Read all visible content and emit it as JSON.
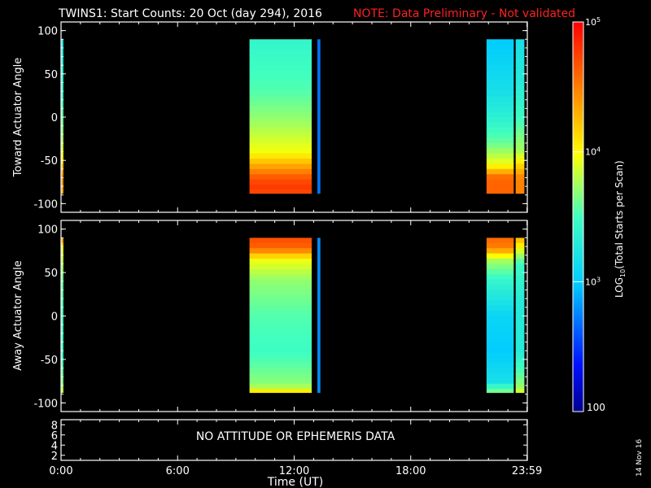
{
  "header": {
    "title": "TWINS1: Start Counts: 20 Oct (day 294), 2016",
    "note": "NOTE: Data Preliminary - Not validated",
    "note_color": "#ff2020"
  },
  "colorbar": {
    "label_main": "LOG",
    "label_sub": "10",
    "label_rest": "(Total Starts per Scan)",
    "min_label": "100",
    "ticks": [
      {
        "base": "10",
        "exp": "3",
        "value": 1000
      },
      {
        "base": "10",
        "exp": "4",
        "value": 10000
      },
      {
        "base": "10",
        "exp": "5",
        "value": 100000
      }
    ],
    "range": [
      100,
      100000
    ],
    "scale": "log",
    "palette": "rainbow (blue-cyan-yellow-red)"
  },
  "date_stamp": "14 Nov 16",
  "xaxis": {
    "label": "Time (UT)",
    "ticks": [
      "0:00",
      "6:00",
      "12:00",
      "18:00",
      "23:59"
    ]
  },
  "chart_data": [
    {
      "type": "heatmap",
      "id": "toward",
      "ylabel": "Toward Actuator Angle",
      "xlabel": "",
      "x_range": [
        0,
        24
      ],
      "y_range": [
        -110,
        110
      ],
      "yticks": [
        "100",
        "50",
        "0",
        "-50",
        "-100"
      ],
      "data_extent_deg": [
        -88,
        90
      ],
      "segments": [
        {
          "t_start": 0.0,
          "t_end": 0.12,
          "profile": [
            [
              90,
              1600
            ],
            [
              60,
              2000
            ],
            [
              20,
              3000
            ],
            [
              -20,
              5000
            ],
            [
              -45,
              9000
            ],
            [
              -70,
              30000
            ],
            [
              -88,
              20000
            ]
          ]
        },
        {
          "t_start": 9.7,
          "t_end": 12.9,
          "profile": [
            [
              90,
              2500
            ],
            [
              60,
              3000
            ],
            [
              30,
              3500
            ],
            [
              0,
              5000
            ],
            [
              -40,
              9000
            ],
            [
              -55,
              20000
            ],
            [
              -70,
              45000
            ],
            [
              -80,
              60000
            ],
            [
              -88,
              50000
            ]
          ]
        },
        {
          "t_start": 13.2,
          "t_end": 13.35,
          "profile": [
            [
              90,
              500
            ],
            [
              -88,
              500
            ]
          ]
        },
        {
          "t_start": 21.9,
          "t_end": 23.3,
          "profile": [
            [
              90,
              1000
            ],
            [
              60,
              1200
            ],
            [
              30,
              1500
            ],
            [
              0,
              2200
            ],
            [
              -30,
              4000
            ],
            [
              -55,
              9000
            ],
            [
              -70,
              40000
            ],
            [
              -88,
              40000
            ]
          ]
        },
        {
          "t_start": 23.4,
          "t_end": 23.85,
          "profile": [
            [
              90,
              1500
            ],
            [
              40,
              2000
            ],
            [
              0,
              3000
            ],
            [
              -40,
              6000
            ],
            [
              -70,
              30000
            ],
            [
              -88,
              30000
            ]
          ]
        }
      ]
    },
    {
      "type": "heatmap",
      "id": "away",
      "ylabel": "Away Actuator Angle",
      "xlabel": "",
      "x_range": [
        0,
        24
      ],
      "y_range": [
        -110,
        110
      ],
      "yticks": [
        "100",
        "50",
        "0",
        "-50",
        "-100"
      ],
      "data_extent_deg": [
        -88,
        90
      ],
      "segments": [
        {
          "t_start": 0.0,
          "t_end": 0.12,
          "profile": [
            [
              90,
              30000
            ],
            [
              75,
              8000
            ],
            [
              40,
              4000
            ],
            [
              0,
              3000
            ],
            [
              -50,
              3000
            ],
            [
              -80,
              5000
            ],
            [
              -88,
              8000
            ]
          ]
        },
        {
          "t_start": 9.7,
          "t_end": 12.9,
          "profile": [
            [
              90,
              50000
            ],
            [
              78,
              40000
            ],
            [
              65,
              9000
            ],
            [
              40,
              5000
            ],
            [
              0,
              3500
            ],
            [
              -40,
              3000
            ],
            [
              -80,
              5000
            ],
            [
              -88,
              15000
            ]
          ]
        },
        {
          "t_start": 13.2,
          "t_end": 13.35,
          "profile": [
            [
              90,
              600
            ],
            [
              -88,
              600
            ]
          ]
        },
        {
          "t_start": 21.9,
          "t_end": 23.3,
          "profile": [
            [
              90,
              40000
            ],
            [
              78,
              30000
            ],
            [
              65,
              6000
            ],
            [
              40,
              2500
            ],
            [
              0,
              1200
            ],
            [
              -40,
              1000
            ],
            [
              -75,
              1500
            ],
            [
              -88,
              5000
            ]
          ]
        },
        {
          "t_start": 23.4,
          "t_end": 23.85,
          "profile": [
            [
              90,
              20000
            ],
            [
              60,
              3000
            ],
            [
              20,
              2000
            ],
            [
              -40,
              2000
            ],
            [
              -80,
              5000
            ],
            [
              -88,
              8000
            ]
          ]
        }
      ]
    },
    {
      "type": "line",
      "id": "attitude",
      "ylabel": "",
      "xlabel": "",
      "yticks": [
        "8",
        "6",
        "4",
        "2"
      ],
      "message": "NO ATTITUDE OR EPHEMERIS DATA",
      "series": []
    }
  ]
}
